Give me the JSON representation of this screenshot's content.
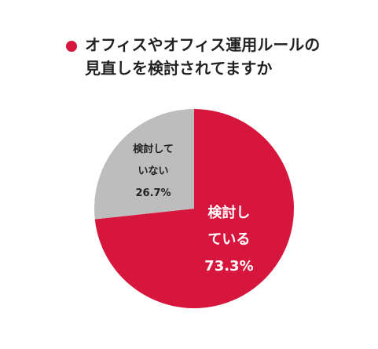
{
  "chart_data": {
    "type": "pie",
    "title": "オフィスやオフィス運用ルールの見直しを検討されてますか",
    "categories": [
      "検討している",
      "検討していない"
    ],
    "values": [
      73.3,
      26.7
    ],
    "value_labels": [
      "73.3%",
      "26.7%"
    ],
    "colors": [
      "#d7163e",
      "#bdbdbd"
    ],
    "label_colors": [
      "#ffffff",
      "#222222"
    ]
  }
}
